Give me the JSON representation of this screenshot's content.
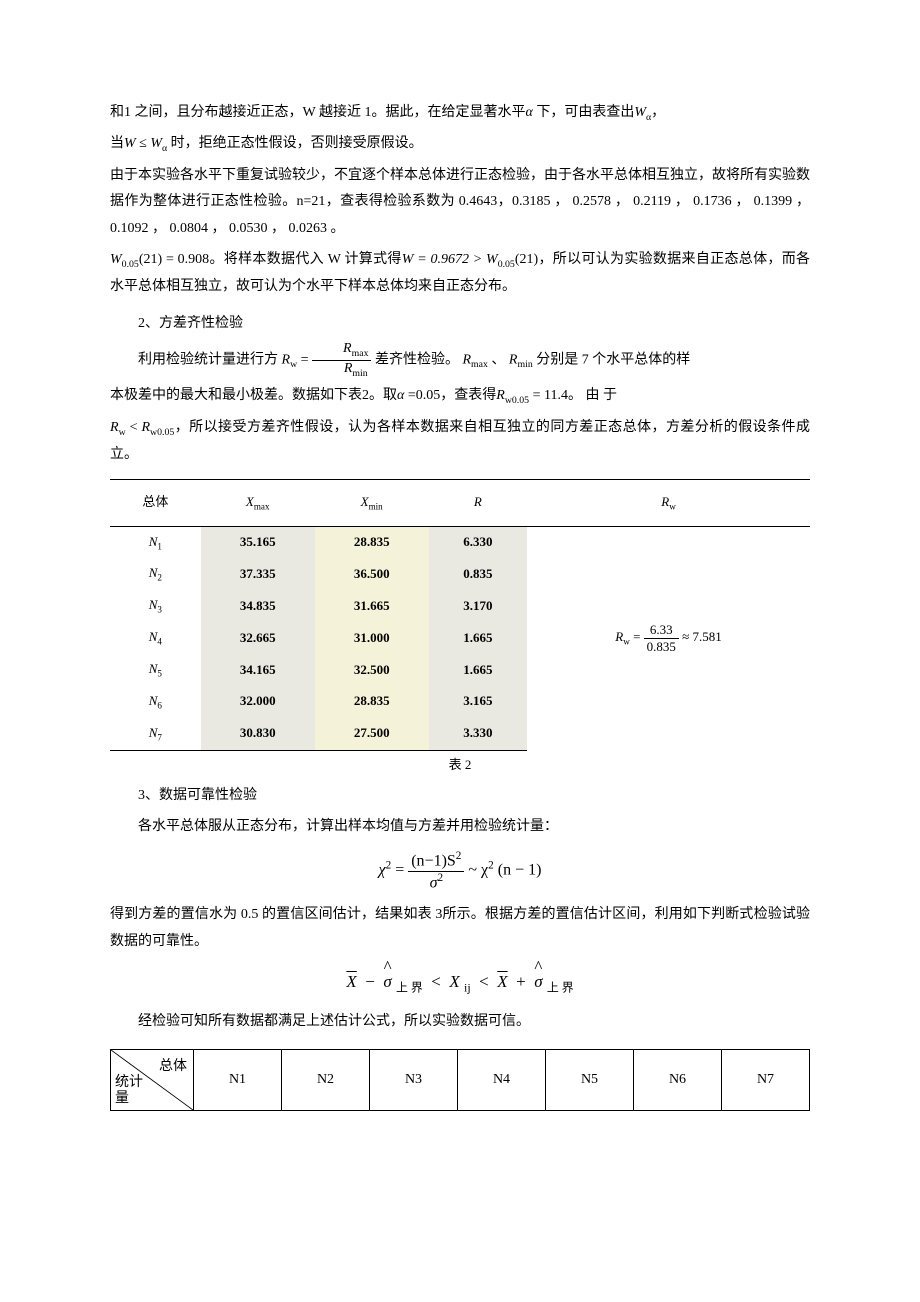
{
  "para1_a": "和1 之间，且分布越接近正态，W 越接近 1。据此，在给定显著水平",
  "para1_alpha": "α",
  "para1_b": "下，可由表查出",
  "para1_c": "，",
  "para2_a": "当",
  "para2_b": "时，拒绝正态性假设，否则接受原假设。",
  "para3": "由于本实验各水平下重复试验较少，不宜逐个样本总体进行正态检验，由于各水平总体相互独立，故将所有实验数据作为整体进行正态性检验。n=21，查表得检验系数为 0.4643，0.3185 ， 0.2578 ， 0.2119 ， 0.1736 ， 0.1399 ， 0.1092 ， 0.0804 ， 0.0530 ， 0.0263 。",
  "para4_a": "。将样本数据代入 W 计算式得",
  "para4_b": "，所以可认为实验数据来自正态总体，而各水平总体相互独立，故可认为个水平下样本总体均来自正态分布。",
  "W005_21": "W",
  "W005_21_val": "(21) = 0.908",
  "W_calc": "W = 0.9672 > W",
  "W_calc_tail": "(21)",
  "sec2_title": "2、方差齐性检验",
  "para5_a": "利用检验统计量进行方",
  "para5_b": "差齐性检验。",
  "para5_c": "、",
  "para5_d": "分别是 7 个水平总体的样",
  "Rw_eq": "R",
  "Rmax_lbl": "R",
  "Rmin_lbl": "R",
  "para6_a": "本极差中的最大和最小极差。数据如下表2。取",
  "para6_b": "=0.05，查表得",
  "para6_c": "。 由 于",
  "Rw005": "= 11.4",
  "para7_a": "，所以接受方差齐性假设，认为各样本数据来自相互独立的同方差正态总体，方差分析的假设条件成立。",
  "RwLT": "R",
  "table2": {
    "headers": [
      "总体",
      "Xmax",
      "Xmin",
      "R",
      "Rw"
    ],
    "rows": [
      {
        "n": "N₁",
        "xmax": "35.165",
        "xmin": "28.835",
        "r": "6.330"
      },
      {
        "n": "N₂",
        "xmax": "37.335",
        "xmin": "36.500",
        "r": "0.835"
      },
      {
        "n": "N₃",
        "xmax": "34.835",
        "xmin": "31.665",
        "r": "3.170"
      },
      {
        "n": "N₄",
        "xmax": "32.665",
        "xmin": "31.000",
        "r": "1.665"
      },
      {
        "n": "N₅",
        "xmax": "34.165",
        "xmin": "32.500",
        "r": "1.665"
      },
      {
        "n": "N₆",
        "xmax": "32.000",
        "xmin": "28.835",
        "r": "3.165"
      },
      {
        "n": "N₇",
        "xmax": "30.830",
        "xmin": "27.500",
        "r": "3.330"
      }
    ],
    "rw_num": "6.33",
    "rw_den": "0.835",
    "rw_approx": "≈ 7.581"
  },
  "table2_caption": "表 2",
  "sec3_title": "3、数据可靠性检验",
  "para8": "各水平总体服从正态分布，计算出样本均值与方差并用检验统计量：",
  "para9": "得到方差的置信水为 0.5 的置信区间估计，结果如表 3所示。根据方差的置信估计区间，利用如下判断式检验试验数据的可靠性。",
  "para10": "经检验可知所有数据都满足上述估计公式，所以实验数据可信。",
  "table3": {
    "corner_top": "总体",
    "corner_mid": "统计",
    "corner_bot": "量",
    "cols": [
      "N1",
      "N2",
      "N3",
      "N4",
      "N5",
      "N6",
      "N7"
    ]
  },
  "chi_num": "(n−1)S",
  "chi_den": "σ",
  "chi_tail": "~ χ",
  "chi_tail2": "(n − 1)",
  "ineq_upper": "上 界",
  "ineq_X": "X",
  "ineq_sigma": "σ"
}
